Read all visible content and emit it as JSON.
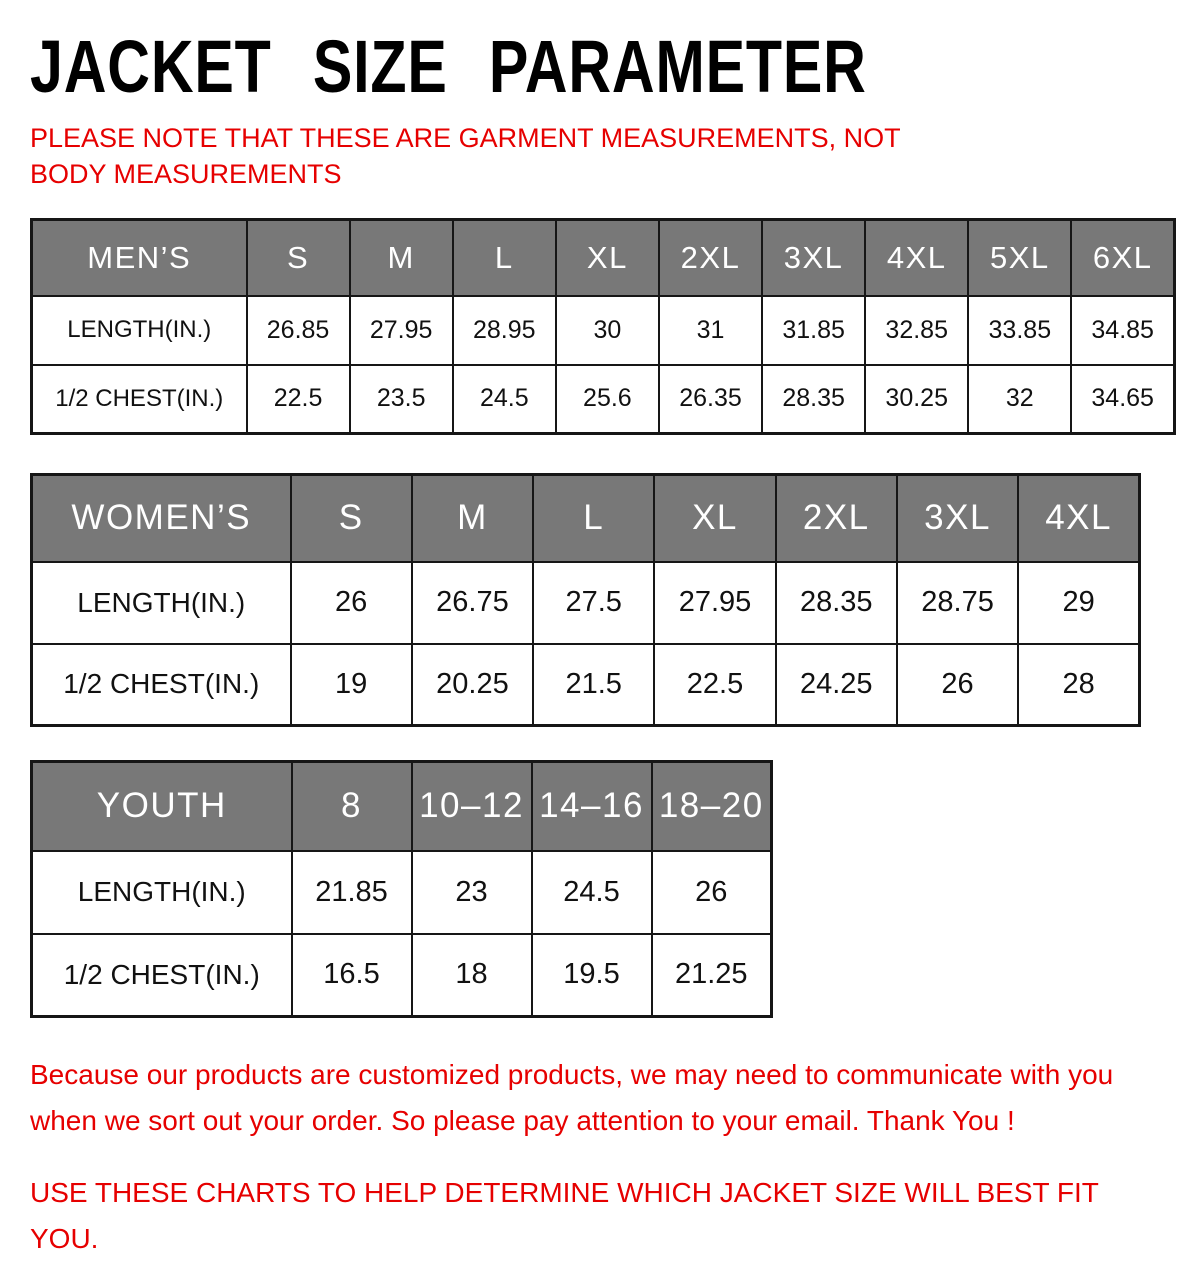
{
  "page": {
    "title": "JACKET SIZE PARAMETER",
    "subtitle": "PLEASE NOTE THAT THESE ARE GARMENT MEASUREMENTS, NOT BODY MEASUREMENTS",
    "footer_note_1": "Because our products are customized products, we may need to communicate with you when we sort out your order. So please pay attention to your email. Thank You !",
    "footer_note_2": "USE THESE CHARTS TO HELP DETERMINE WHICH JACKET SIZE WILL BEST FIT YOU.",
    "colors": {
      "accent_red": "#e60000",
      "header_gray": "#787878",
      "header_text": "#ffffff",
      "table_border": "#161616"
    }
  },
  "tables": [
    {
      "id": "mens",
      "header": [
        "MEN’S",
        "S",
        "M",
        "L",
        "XL",
        "2XL",
        "3XL",
        "4XL",
        "5XL",
        "6XL"
      ],
      "rows": [
        {
          "label": "LENGTH(IN.)",
          "values": [
            "26.85",
            "27.95",
            "28.95",
            "30",
            "31",
            "31.85",
            "32.85",
            "33.85",
            "34.85"
          ]
        },
        {
          "label": "1/2 CHEST(IN.)",
          "values": [
            "22.5",
            "23.5",
            "24.5",
            "25.6",
            "26.35",
            "28.35",
            "30.25",
            "32",
            "34.65"
          ]
        }
      ]
    },
    {
      "id": "womens",
      "header": [
        "WOMEN’S",
        "S",
        "M",
        "L",
        "XL",
        "2XL",
        "3XL",
        "4XL"
      ],
      "rows": [
        {
          "label": "LENGTH(IN.)",
          "values": [
            "26",
            "26.75",
            "27.5",
            "27.95",
            "28.35",
            "28.75",
            "29"
          ]
        },
        {
          "label": "1/2 CHEST(IN.)",
          "values": [
            "19",
            "20.25",
            "21.5",
            "22.5",
            "24.25",
            "26",
            "28"
          ]
        }
      ]
    },
    {
      "id": "youth",
      "header": [
        "YOUTH",
        "8",
        "10–12",
        "14–16",
        "18–20"
      ],
      "rows": [
        {
          "label": "LENGTH(IN.)",
          "values": [
            "21.85",
            "23",
            "24.5",
            "26"
          ]
        },
        {
          "label": "1/2 CHEST(IN.)",
          "values": [
            "16.5",
            "18",
            "19.5",
            "21.25"
          ]
        }
      ]
    }
  ]
}
